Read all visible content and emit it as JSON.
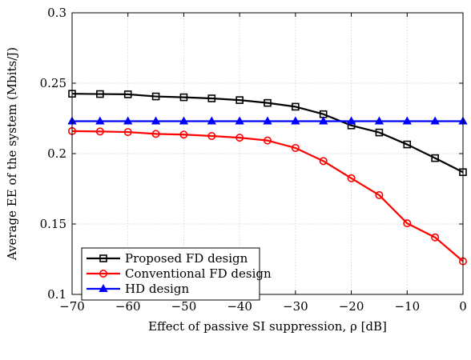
{
  "chart_data": {
    "type": "line",
    "title": "",
    "xlabel": "Effect of passive SI suppression, ρ [dB]",
    "ylabel": "Average EE of the system (Mbits/J)",
    "xlim": [
      -70,
      0
    ],
    "ylim": [
      0.1,
      0.3
    ],
    "xticks": [
      -70,
      -60,
      -50,
      -40,
      -30,
      -20,
      -10,
      0
    ],
    "xtick_labels": [
      "−70",
      "−60",
      "−50",
      "−40",
      "−30",
      "−20",
      "−10",
      "0"
    ],
    "yticks": [
      0.1,
      0.15,
      0.2,
      0.25,
      0.3
    ],
    "ytick_labels": [
      "0.1",
      "0.15",
      "0.2",
      "0.25",
      "0.3"
    ],
    "grid": true,
    "legend_position": "bottom-left",
    "x": [
      -70,
      -65,
      -60,
      -55,
      -50,
      -45,
      -40,
      -35,
      -30,
      -25,
      -20,
      -15,
      -10,
      -5,
      0
    ],
    "series": [
      {
        "name": "Proposed FD design",
        "color": "#000000",
        "marker": "square",
        "values": [
          0.2425,
          0.2423,
          0.2421,
          0.2406,
          0.24,
          0.2392,
          0.238,
          0.236,
          0.2333,
          0.228,
          0.22,
          0.215,
          0.2065,
          0.1968,
          0.1868
        ]
      },
      {
        "name": "Conventional FD design",
        "color": "#ff0000",
        "marker": "circle",
        "values": [
          0.216,
          0.2157,
          0.2153,
          0.214,
          0.2135,
          0.2125,
          0.2113,
          0.2093,
          0.204,
          0.1947,
          0.1825,
          0.1705,
          0.1505,
          0.1405,
          0.1235
        ]
      },
      {
        "name": "HD design",
        "color": "#0000ff",
        "marker": "triangle",
        "values": [
          0.223,
          0.223,
          0.223,
          0.223,
          0.223,
          0.223,
          0.223,
          0.223,
          0.223,
          0.223,
          0.223,
          0.223,
          0.223,
          0.223,
          0.223
        ]
      }
    ]
  }
}
